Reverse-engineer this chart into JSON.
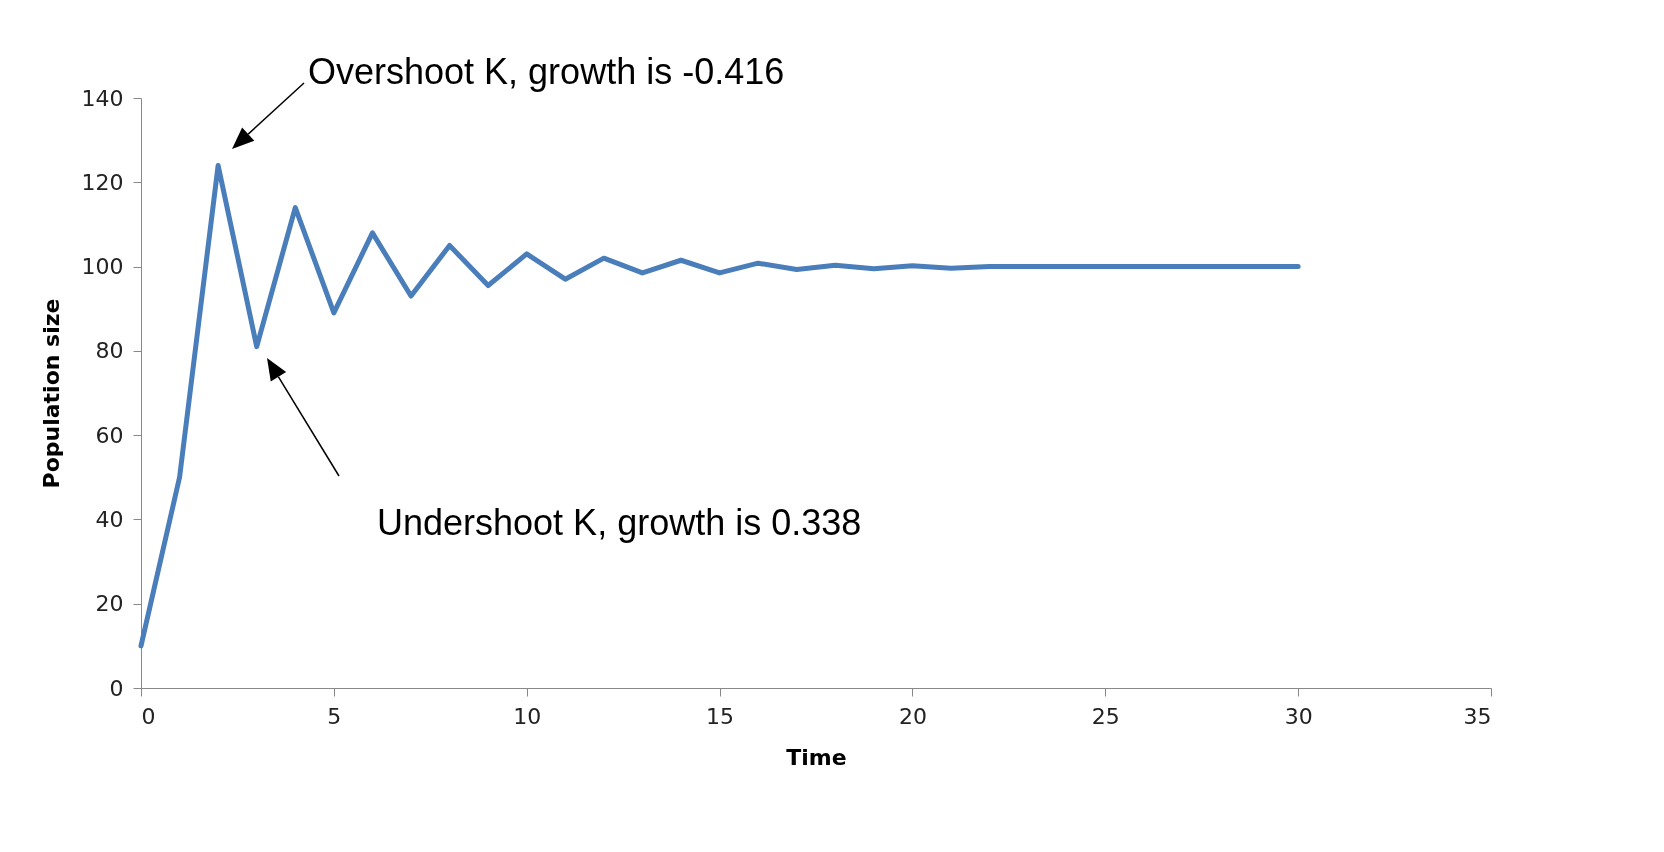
{
  "chart_data": {
    "type": "line",
    "xlabel": "Time",
    "ylabel": "Population size",
    "x": [
      0,
      1,
      2,
      3,
      4,
      5,
      6,
      7,
      8,
      9,
      10,
      11,
      12,
      13,
      14,
      15,
      16,
      17,
      18,
      19,
      20,
      21,
      22,
      23,
      24,
      25,
      26,
      27,
      28,
      29,
      30
    ],
    "series": [
      {
        "color": "#4a7ebb",
        "values": [
          10,
          50,
          124,
          81,
          114,
          89,
          108,
          93,
          105,
          95.5,
          103,
          97,
          102,
          98.5,
          101.5,
          98.5,
          100.8,
          99.3,
          100.3,
          99.5,
          100.2,
          99.6,
          100,
          100,
          100,
          100,
          100,
          100,
          100,
          100,
          100
        ]
      }
    ],
    "xlim": [
      0,
      35
    ],
    "xticks": [
      0,
      5,
      10,
      15,
      20,
      25,
      30,
      35
    ],
    "ylim": [
      0,
      140
    ],
    "yticks": [
      0,
      20,
      40,
      60,
      80,
      100,
      120,
      140
    ],
    "grid": false,
    "marker": "none",
    "line_style": "solid",
    "annotations": [
      "Overshoot K, growth is -0.416",
      "Undershoot K, growth is 0.338"
    ]
  }
}
